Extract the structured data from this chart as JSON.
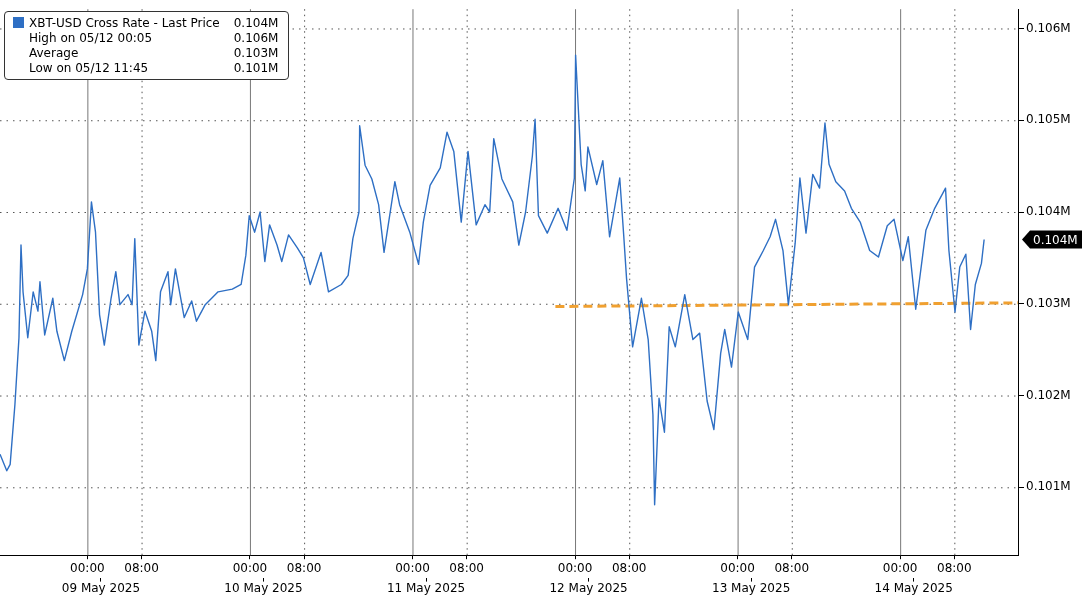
{
  "chart_data": {
    "type": "line",
    "series": [
      {
        "name": "XBT-USD Cross Rate - Last Price",
        "color": "#2e6fc4",
        "line_style": "solid",
        "x": [
          "2025-05-08T11:06",
          "2025-05-08T12:06",
          "2025-05-08T12:36",
          "2025-05-08T13:18",
          "2025-05-08T13:54",
          "2025-05-08T14:12",
          "2025-05-08T14:30",
          "2025-05-08T15:12",
          "2025-05-08T16:00",
          "2025-05-08T16:42",
          "2025-05-08T17:00",
          "2025-05-08T17:42",
          "2025-05-08T18:54",
          "2025-05-08T19:30",
          "2025-05-08T20:36",
          "2025-05-08T21:42",
          "2025-05-08T23:18",
          "2025-05-09T00:00",
          "2025-05-09T00:36",
          "2025-05-09T01:12",
          "2025-05-09T01:48",
          "2025-05-09T02:30",
          "2025-05-09T03:30",
          "2025-05-09T04:12",
          "2025-05-09T04:48",
          "2025-05-09T06:00",
          "2025-05-09T06:36",
          "2025-05-09T07:00",
          "2025-05-09T07:36",
          "2025-05-09T08:30",
          "2025-05-09T09:30",
          "2025-05-09T10:06",
          "2025-05-09T10:48",
          "2025-05-09T11:54",
          "2025-05-09T12:18",
          "2025-05-09T13:00",
          "2025-05-09T14:18",
          "2025-05-09T15:24",
          "2025-05-09T16:06",
          "2025-05-09T17:24",
          "2025-05-09T19:18",
          "2025-05-09T21:24",
          "2025-05-09T22:42",
          "2025-05-09T23:24",
          "2025-05-09T23:54",
          "2025-05-10T00:42",
          "2025-05-10T01:30",
          "2025-05-10T02:12",
          "2025-05-10T02:54",
          "2025-05-10T04:00",
          "2025-05-10T04:42",
          "2025-05-10T05:42",
          "2025-05-10T07:00",
          "2025-05-10T07:54",
          "2025-05-10T08:54",
          "2025-05-10T10:30",
          "2025-05-10T11:36",
          "2025-05-10T13:30",
          "2025-05-10T14:30",
          "2025-05-10T15:12",
          "2025-05-10T16:06",
          "2025-05-10T16:12",
          "2025-05-10T17:00",
          "2025-05-10T18:00",
          "2025-05-10T19:00",
          "2025-05-10T19:48",
          "2025-05-10T21:24",
          "2025-05-10T22:06",
          "2025-05-10T23:36",
          "2025-05-11T00:54",
          "2025-05-11T01:36",
          "2025-05-11T02:36",
          "2025-05-11T04:06",
          "2025-05-11T05:06",
          "2025-05-11T06:06",
          "2025-05-11T07:12",
          "2025-05-11T08:12",
          "2025-05-11T09:24",
          "2025-05-11T10:42",
          "2025-05-11T11:24",
          "2025-05-11T12:00",
          "2025-05-11T13:12",
          "2025-05-11T14:48",
          "2025-05-11T15:42",
          "2025-05-11T16:42",
          "2025-05-11T17:42",
          "2025-05-11T18:06",
          "2025-05-11T18:36",
          "2025-05-11T19:54",
          "2025-05-11T21:30",
          "2025-05-11T22:48",
          "2025-05-11T23:54",
          "2025-05-12T00:05",
          "2025-05-12T00:54",
          "2025-05-12T01:30",
          "2025-05-12T01:54",
          "2025-05-12T03:12",
          "2025-05-12T04:06",
          "2025-05-12T05:06",
          "2025-05-12T06:36",
          "2025-05-12T07:12",
          "2025-05-12T07:36",
          "2025-05-12T08:30",
          "2025-05-12T09:48",
          "2025-05-12T10:48",
          "2025-05-12T11:30",
          "2025-05-12T11:45",
          "2025-05-12T12:24",
          "2025-05-12T13:12",
          "2025-05-12T13:54",
          "2025-05-12T14:48",
          "2025-05-12T16:12",
          "2025-05-12T17:24",
          "2025-05-12T18:24",
          "2025-05-12T19:30",
          "2025-05-12T20:30",
          "2025-05-12T21:30",
          "2025-05-12T22:06",
          "2025-05-12T23:06",
          "2025-05-13T00:06",
          "2025-05-13T01:30",
          "2025-05-13T02:30",
          "2025-05-13T03:48",
          "2025-05-13T04:48",
          "2025-05-13T05:36",
          "2025-05-13T06:42",
          "2025-05-13T07:30",
          "2025-05-13T08:30",
          "2025-05-13T09:12",
          "2025-05-13T10:06",
          "2025-05-13T11:06",
          "2025-05-13T12:06",
          "2025-05-13T12:54",
          "2025-05-13T13:30",
          "2025-05-13T14:30",
          "2025-05-13T15:48",
          "2025-05-13T16:48",
          "2025-05-13T18:06",
          "2025-05-13T19:30",
          "2025-05-13T20:48",
          "2025-05-13T22:06",
          "2025-05-13T23:06",
          "2025-05-14T00:24",
          "2025-05-14T01:12",
          "2025-05-14T02:18",
          "2025-05-14T03:48",
          "2025-05-14T05:06",
          "2025-05-14T06:42",
          "2025-05-14T07:12",
          "2025-05-14T08:06",
          "2025-05-14T08:48",
          "2025-05-14T09:42",
          "2025-05-14T10:24",
          "2025-05-14T11:06",
          "2025-05-14T12:00",
          "2025-05-14T12:24"
        ],
        "values": [
          101360,
          101180,
          101250,
          101900,
          102630,
          103640,
          103130,
          102630,
          103130,
          102920,
          103240,
          102660,
          103060,
          102700,
          102380,
          102700,
          103100,
          103380,
          104110,
          103780,
          102880,
          102550,
          103060,
          103350,
          102990,
          103100,
          102990,
          103710,
          102550,
          102920,
          102700,
          102380,
          103130,
          103350,
          102990,
          103380,
          102850,
          103030,
          102810,
          102990,
          103130,
          103160,
          103210,
          103530,
          103960,
          103780,
          104000,
          103460,
          103860,
          103640,
          103460,
          103750,
          103610,
          103500,
          103210,
          103560,
          103130,
          103210,
          103310,
          103710,
          104000,
          104940,
          104510,
          104360,
          104080,
          103560,
          104330,
          104080,
          103780,
          103430,
          103890,
          104290,
          104480,
          104870,
          104660,
          103890,
          104660,
          103860,
          104080,
          104000,
          104800,
          104360,
          104110,
          103640,
          104000,
          104610,
          105010,
          103960,
          103770,
          104040,
          103800,
          104370,
          105710,
          104520,
          104230,
          104710,
          104300,
          104560,
          103730,
          104370,
          103730,
          103280,
          102530,
          103060,
          102610,
          101790,
          100810,
          101970,
          101600,
          102750,
          102530,
          103100,
          102610,
          102680,
          101940,
          101630,
          102460,
          102720,
          102310,
          102910,
          102610,
          103400,
          103580,
          103730,
          103920,
          103580,
          102990,
          103660,
          104370,
          103770,
          104410,
          104260,
          104970,
          104520,
          104330,
          104230,
          104040,
          103890,
          103580,
          103510,
          103850,
          103920,
          103470,
          103730,
          102940,
          103800,
          104040,
          104260,
          103580,
          102910,
          103400,
          103540,
          102720,
          103210,
          103440,
          103700
        ]
      },
      {
        "color": "#f0a030",
        "line_style": "dashed",
        "x": [
          "2025-05-11T21:06",
          "2025-05-14T17:24"
        ],
        "values": [
          102970,
          103010
        ]
      }
    ],
    "xlim": [
      "2025-05-08T11:06",
      "2025-05-14T17:24"
    ],
    "xticks": [
      {
        "value": "2025-05-09T00:00",
        "label": "00:00"
      },
      {
        "value": "2025-05-09T08:00",
        "label": "08:00"
      },
      {
        "value": "2025-05-10T00:00",
        "label": "00:00"
      },
      {
        "value": "2025-05-10T08:00",
        "label": "08:00"
      },
      {
        "value": "2025-05-11T00:00",
        "label": "00:00"
      },
      {
        "value": "2025-05-11T08:00",
        "label": "08:00"
      },
      {
        "value": "2025-05-12T00:00",
        "label": "00:00"
      },
      {
        "value": "2025-05-12T08:00",
        "label": "08:00"
      },
      {
        "value": "2025-05-13T00:00",
        "label": "00:00"
      },
      {
        "value": "2025-05-13T08:00",
        "label": "08:00"
      },
      {
        "value": "2025-05-14T00:00",
        "label": "00:00"
      },
      {
        "value": "2025-05-14T08:00",
        "label": "08:00"
      }
    ],
    "x2lim": [
      "2025-05-08T11:06",
      "2025-05-14T17:24"
    ],
    "x2ticks": [
      {
        "value": "2025-05-09T02:00",
        "label": "09 May 2025"
      },
      {
        "value": "2025-05-10T02:00",
        "label": "10 May 2025"
      },
      {
        "value": "2025-05-11T02:00",
        "label": "11 May 2025"
      },
      {
        "value": "2025-05-12T02:00",
        "label": "12 May 2025"
      },
      {
        "value": "2025-05-13T02:00",
        "label": "13 May 2025"
      },
      {
        "value": "2025-05-14T02:00",
        "label": "14 May 2025"
      }
    ],
    "ylim": [
      100260,
      106210
    ],
    "yticks": [
      {
        "value": 101000,
        "label": "0.101M"
      },
      {
        "value": 102000,
        "label": "0.102M"
      },
      {
        "value": 103000,
        "label": "0.103M"
      },
      {
        "value": 104000,
        "label": "0.104M"
      },
      {
        "value": 105000,
        "label": "0.105M"
      },
      {
        "value": 106000,
        "label": "0.106M"
      }
    ],
    "grid": true,
    "legend": "top left",
    "annotations": [
      "0.104M",
      "0.104M",
      "High on 05/12 00:05",
      "0.106M",
      "Average",
      "0.103M",
      "Low on 05/12 11:45",
      "0.101M"
    ]
  }
}
